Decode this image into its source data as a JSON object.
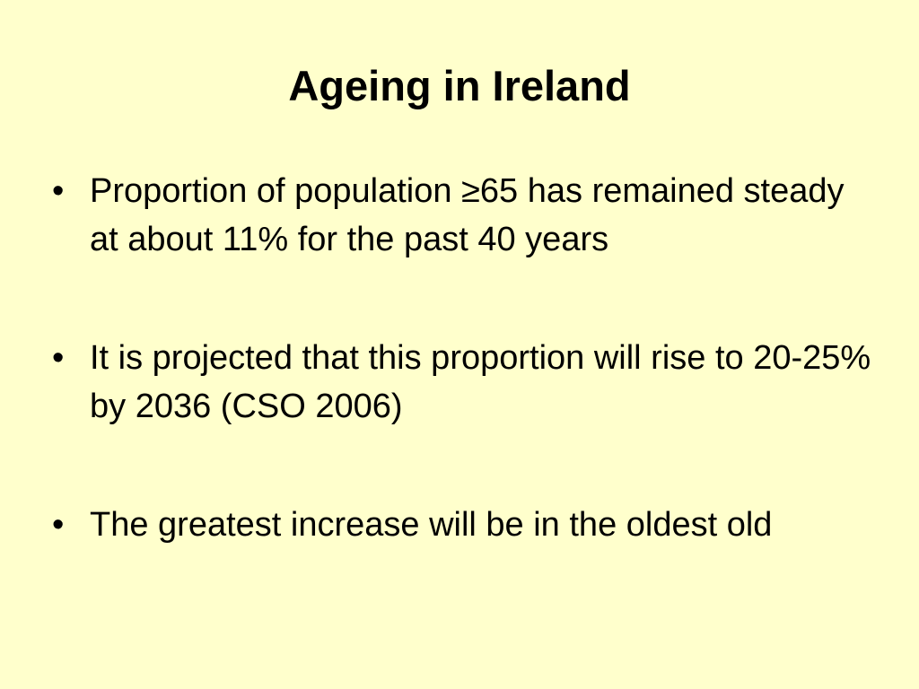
{
  "title": "Ageing in Ireland",
  "bullets": [
    "Proportion of population ≥65 has remained steady at about 11% for the past 40 years",
    "It is projected that this proportion will rise to 20-25% by 2036 (CSO 2006)",
    "The greatest increase will be in the oldest old"
  ]
}
